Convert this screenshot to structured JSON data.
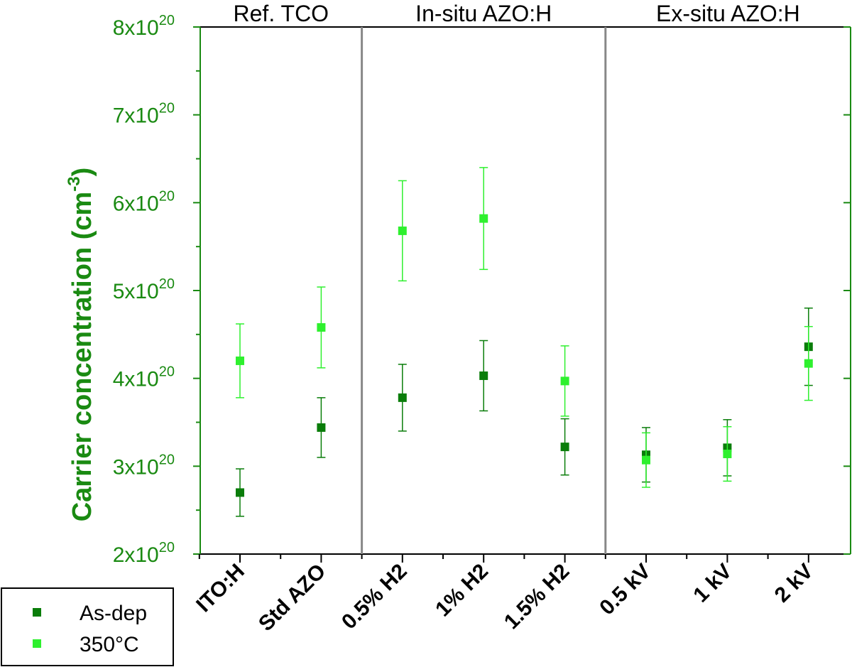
{
  "chart_data": {
    "type": "scatter",
    "title": "",
    "xlabel": "",
    "ylabel": "Carrier concentration (cm",
    "ylabel_sup": "-3",
    "ylabel_close": ")",
    "ylim": [
      2e+20,
      8e+20
    ],
    "yticks": [
      {
        "value": 2e+20,
        "mant": "2x10",
        "exp": "20"
      },
      {
        "value": 3e+20,
        "mant": "3x10",
        "exp": "20"
      },
      {
        "value": 4e+20,
        "mant": "4x10",
        "exp": "20"
      },
      {
        "value": 5e+20,
        "mant": "5x10",
        "exp": "20"
      },
      {
        "value": 6e+20,
        "mant": "6x10",
        "exp": "20"
      },
      {
        "value": 7e+20,
        "mant": "7x10",
        "exp": "20"
      },
      {
        "value": 8e+20,
        "mant": "8x10",
        "exp": "20"
      }
    ],
    "categories": [
      "ITO:H",
      "Std AZO",
      "0.5% H2",
      "1% H2",
      "1.5% H2",
      "0.5 kV",
      "1 kV",
      "2 kV"
    ],
    "groups": [
      {
        "label": "Ref. TCO",
        "start": 0,
        "end": 1
      },
      {
        "label": "In-situ AZO:H",
        "start": 2,
        "end": 4
      },
      {
        "label": "Ex-situ AZO:H",
        "start": 5,
        "end": 7
      }
    ],
    "series": [
      {
        "name": "As-dep",
        "color": "#0a7d0a",
        "values": [
          2.7e+20,
          3.44e+20,
          3.78e+20,
          4.03e+20,
          3.22e+20,
          3.13e+20,
          3.21e+20,
          4.36e+20
        ],
        "errors": [
          2.7e+19,
          3.4e+19,
          3.8e+19,
          4e+19,
          3.2e+19,
          3.1e+19,
          3.2e+19,
          4.4e+19
        ]
      },
      {
        "name": "350°C",
        "color": "#2ef02e",
        "values": [
          4.2e+20,
          4.58e+20,
          5.68e+20,
          5.82e+20,
          3.97e+20,
          3.07e+20,
          3.14e+20,
          4.17e+20
        ],
        "errors": [
          4.2e+19,
          4.6e+19,
          5.7e+19,
          5.8e+19,
          4e+19,
          3.1e+19,
          3.1e+19,
          4.2e+19
        ]
      }
    ],
    "legend_position": "bottom-left",
    "grid": false
  }
}
